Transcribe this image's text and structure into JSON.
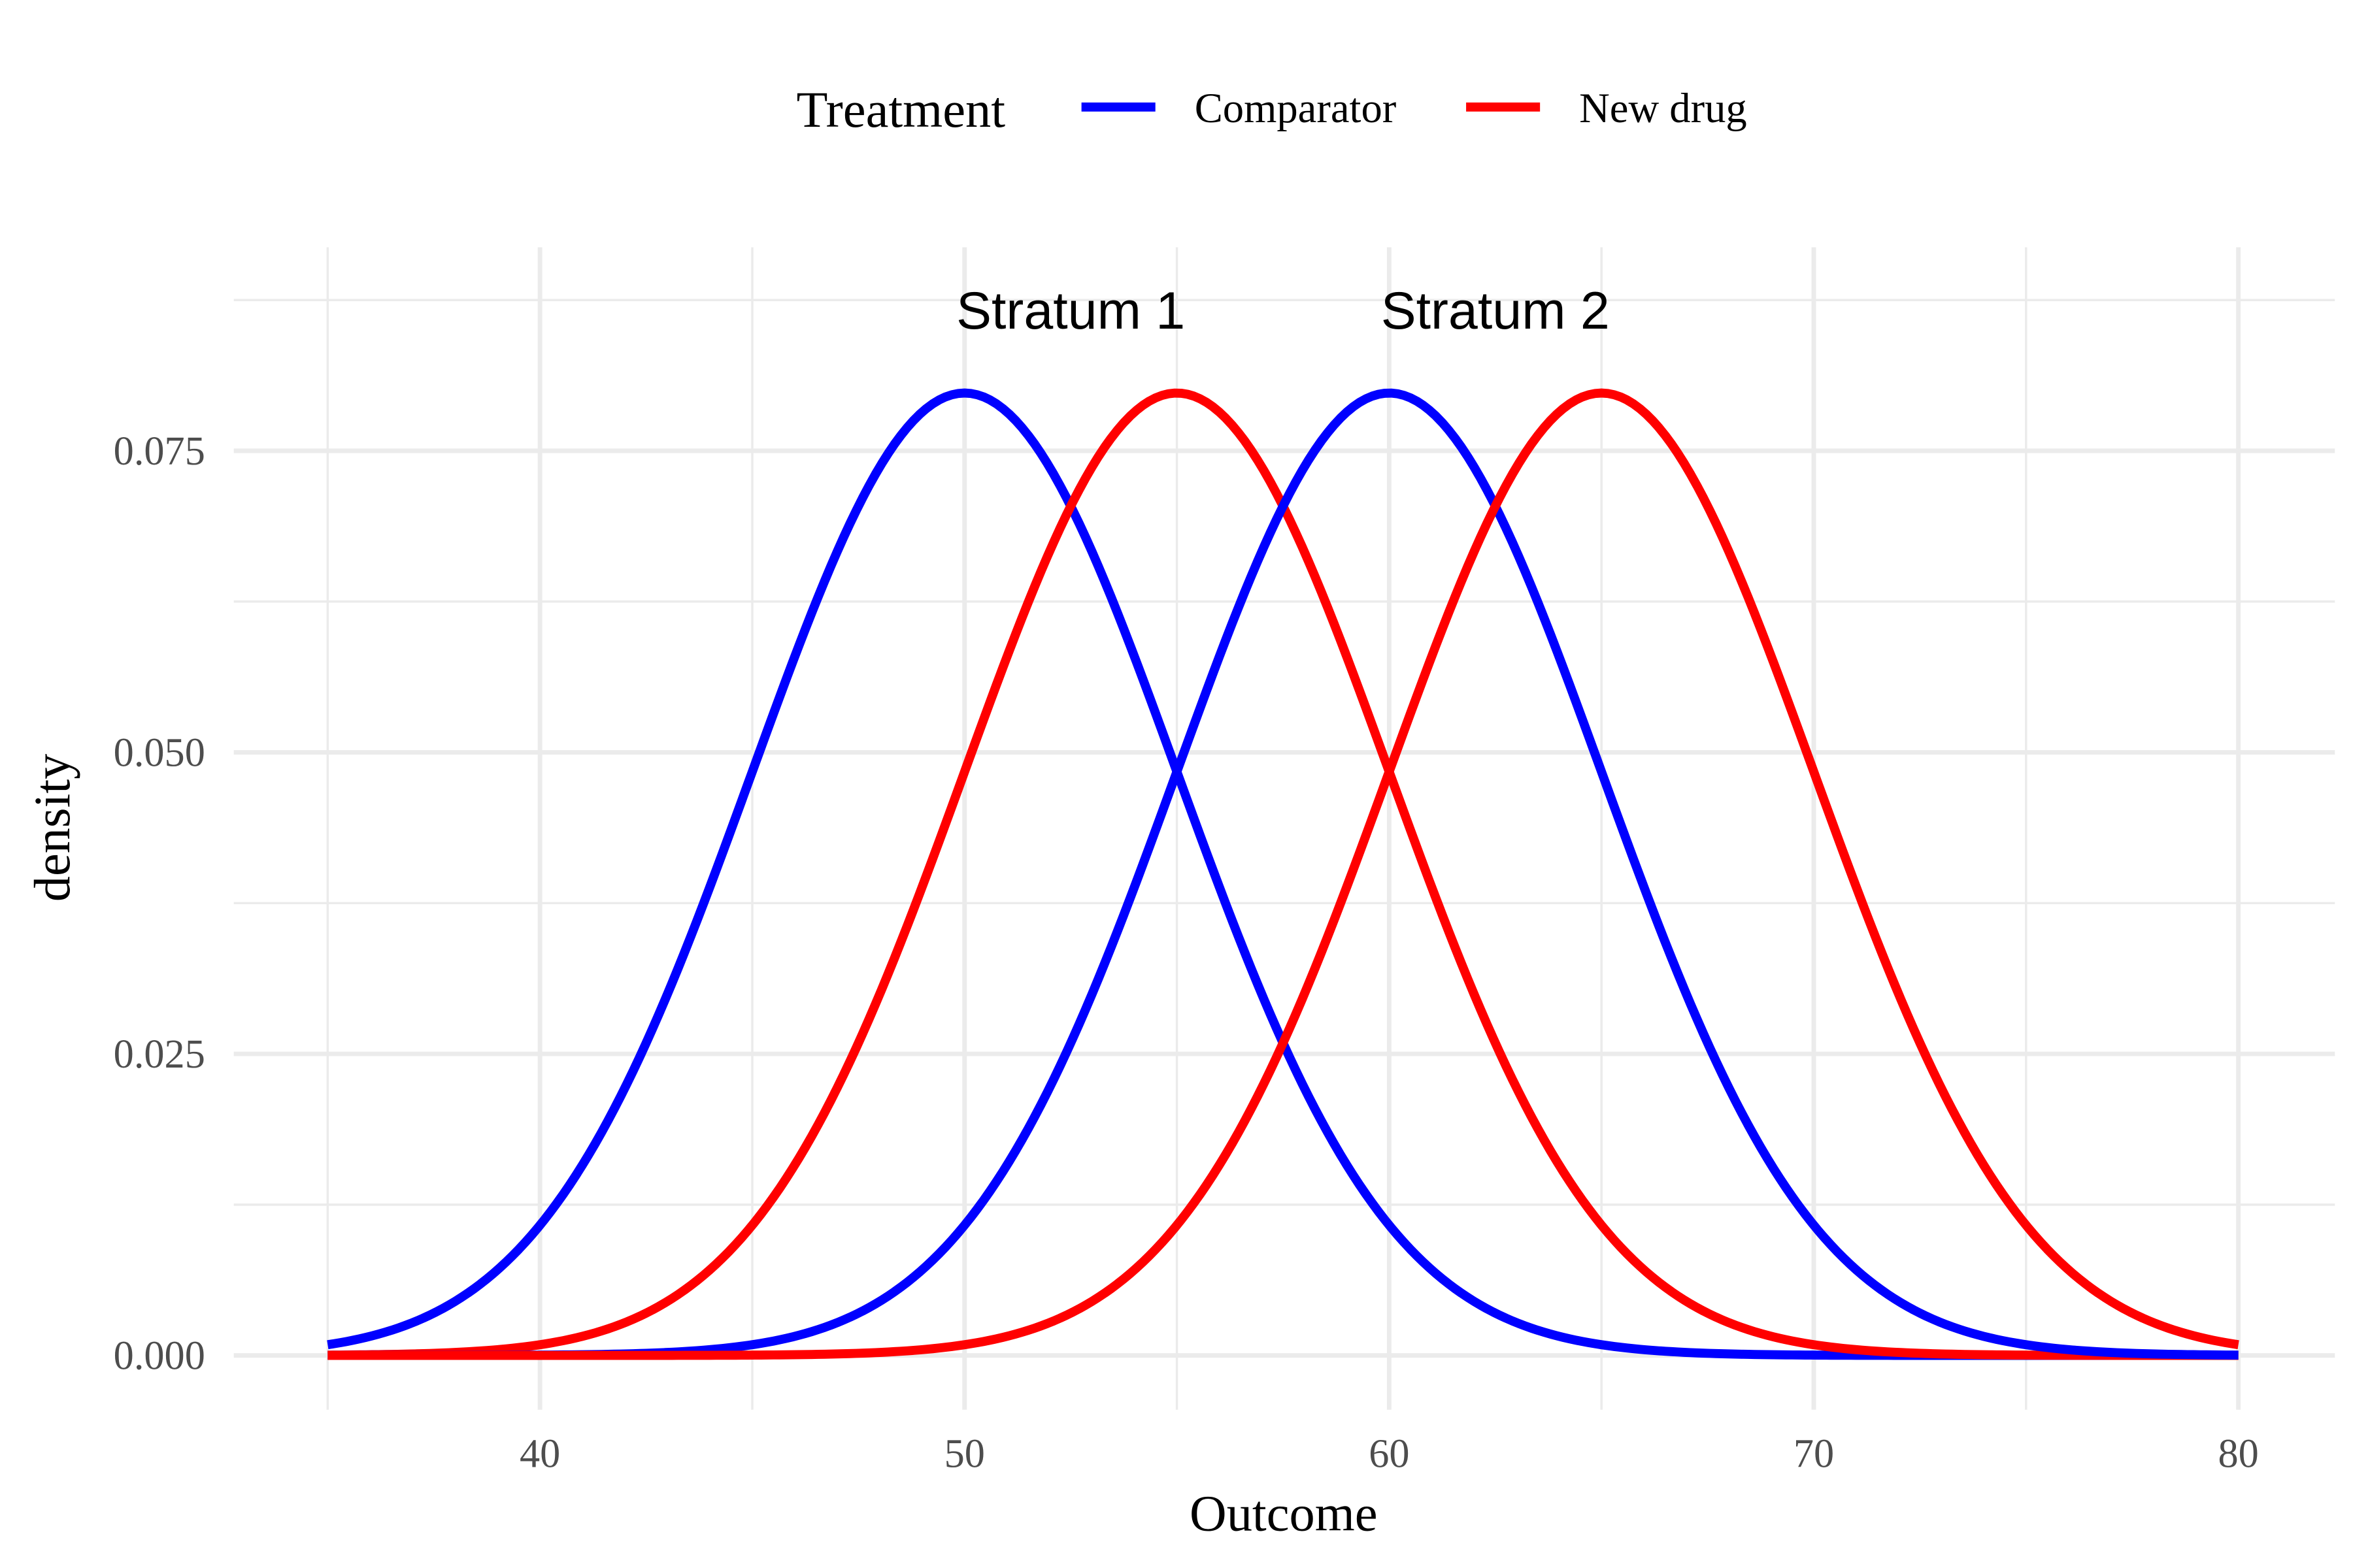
{
  "chart_data": {
    "type": "line",
    "title": "",
    "xlabel": "Outcome",
    "ylabel": "density",
    "xlim": [
      35,
      80
    ],
    "ylim": [
      0,
      0.0875
    ],
    "x_ticks": [
      "40",
      "50",
      "60",
      "70",
      "80"
    ],
    "x_tick_values": [
      40,
      50,
      60,
      70,
      80
    ],
    "y_ticks": [
      "0.000",
      "0.025",
      "0.050",
      "0.075"
    ],
    "y_tick_values": [
      0,
      0.025,
      0.05,
      0.075
    ],
    "grid": true,
    "legend": {
      "title": "Treatment",
      "placement": "top",
      "entries": [
        {
          "name": "Comparator",
          "color": "#0000FF"
        },
        {
          "name": "New drug",
          "color": "#FF0000"
        }
      ]
    },
    "series": [
      {
        "name": "Comparator",
        "stratum": "Stratum 1",
        "color": "#0000FF",
        "distribution": "normal",
        "mean": 50,
        "sd": 5
      },
      {
        "name": "New drug",
        "stratum": "Stratum 1",
        "color": "#FF0000",
        "distribution": "normal",
        "mean": 55,
        "sd": 5
      },
      {
        "name": "Comparator",
        "stratum": "Stratum 2",
        "color": "#0000FF",
        "distribution": "normal",
        "mean": 60,
        "sd": 5
      },
      {
        "name": "New drug",
        "stratum": "Stratum 2",
        "color": "#FF0000",
        "distribution": "normal",
        "mean": 65,
        "sd": 5
      }
    ],
    "annotations": [
      {
        "text": "Stratum 1",
        "x": 52.5,
        "y": 0.087
      },
      {
        "text": "Stratum 2",
        "x": 62.5,
        "y": 0.087
      }
    ]
  }
}
